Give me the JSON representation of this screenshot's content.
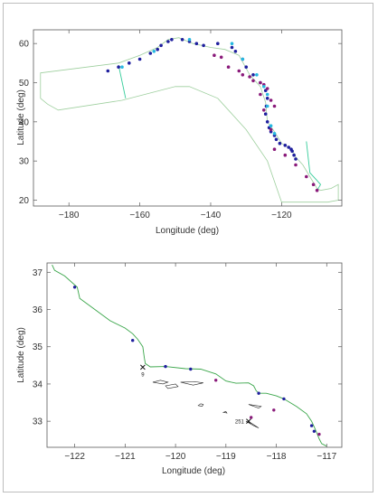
{
  "colors": {
    "frame": "#5a5a5a",
    "track_outline": "#9ecf9e",
    "coast": "#3aa64a",
    "segment": "#33cc99",
    "island": "#222222",
    "dark": "#1f1f9e",
    "purple": "#8a1a7a",
    "cyan": "#27b8e0"
  },
  "chart_data": [
    {
      "type": "scatter",
      "xlabel": "Longitude (deg)",
      "ylabel": "Latitude (deg)",
      "xlim": [
        -190,
        -103
      ],
      "ylim": [
        18.5,
        63.5
      ],
      "xticks": [
        -180,
        -160,
        -140,
        -120
      ],
      "yticks": [
        20,
        30,
        40,
        50,
        60
      ],
      "xtick_labels": [
        "−180",
        "−160",
        "−140",
        "−120"
      ],
      "ytick_labels": [
        "20",
        "30",
        "40",
        "50",
        "60"
      ],
      "boundary": [
        [
          -188,
          52.5
        ],
        [
          -166,
          55
        ],
        [
          -160,
          57
        ],
        [
          -155,
          59
        ],
        [
          -152,
          61
        ],
        [
          -149,
          61.5
        ],
        [
          -145,
          60
        ],
        [
          -140,
          59
        ],
        [
          -136,
          58.5
        ],
        [
          -132,
          57
        ],
        [
          -129,
          52
        ],
        [
          -126,
          49
        ],
        [
          -124.5,
          45
        ],
        [
          -124,
          40
        ],
        [
          -122,
          37.5
        ],
        [
          -120,
          34.5
        ],
        [
          -117,
          33
        ],
        [
          -116,
          31
        ],
        [
          -114,
          29
        ],
        [
          -112,
          26
        ],
        [
          -110,
          23
        ],
        [
          -109,
          22.5
        ],
        [
          -106,
          23
        ],
        [
          -104,
          24
        ],
        [
          -104,
          20
        ],
        [
          -107,
          19.5
        ],
        [
          -110,
          19.5
        ],
        [
          -120,
          19.5
        ],
        [
          -124,
          30
        ],
        [
          -130,
          38
        ],
        [
          -138,
          46
        ],
        [
          -146,
          49
        ],
        [
          -150,
          49
        ],
        [
          -165,
          45.5
        ],
        [
          -183,
          43
        ],
        [
          -186,
          44.5
        ],
        [
          -188,
          46
        ],
        [
          -188,
          52.5
        ]
      ],
      "segments": [
        [
          [
            -166,
            54.5
          ],
          [
            -164,
            46
          ]
        ],
        [
          [
            -113,
            35
          ],
          [
            -112,
            27
          ],
          [
            -110,
            25
          ],
          [
            -109,
            24
          ],
          [
            -110,
            22.5
          ]
        ]
      ],
      "series": [
        {
          "color": "dark",
          "points": [
            [
              -169,
              53
            ],
            [
              -166,
              54
            ],
            [
              -163,
              55
            ],
            [
              -160,
              56
            ],
            [
              -157,
              57.5
            ],
            [
              -155,
              58.5
            ],
            [
              -154,
              59.5
            ],
            [
              -152,
              60.5
            ],
            [
              -151,
              61
            ],
            [
              -148,
              61
            ],
            [
              -146,
              60.5
            ],
            [
              -144,
              60
            ],
            [
              -142,
              59.5
            ],
            [
              -138,
              60
            ],
            [
              -134,
              59
            ],
            [
              -133,
              58
            ],
            [
              -131,
              56
            ],
            [
              -130,
              54
            ],
            [
              -128,
              52
            ],
            [
              -126,
              50
            ],
            [
              -124.5,
              48
            ],
            [
              -124,
              46
            ],
            [
              -124.3,
              44
            ],
            [
              -124.5,
              42
            ],
            [
              -124,
              40
            ],
            [
              -123.5,
              38.5
            ],
            [
              -123,
              37.5
            ],
            [
              -122,
              36.5
            ],
            [
              -121.5,
              35.5
            ],
            [
              -120.5,
              34.5
            ],
            [
              -119,
              34
            ],
            [
              -118,
              33.5
            ],
            [
              -117.3,
              33
            ],
            [
              -117,
              32.5
            ],
            [
              -116.5,
              31.5
            ],
            [
              -116,
              30.5
            ]
          ]
        },
        {
          "color": "purple",
          "points": [
            [
              -139,
              57
            ],
            [
              -137,
              56.5
            ],
            [
              -135,
              54
            ],
            [
              -132,
              53
            ],
            [
              -131,
              52
            ],
            [
              -129,
              51.5
            ],
            [
              -128,
              50.5
            ],
            [
              -126,
              50
            ],
            [
              -125,
              49.5
            ],
            [
              -124,
              48.5
            ],
            [
              -126,
              47
            ],
            [
              -123,
              45.5
            ],
            [
              -122,
              44
            ],
            [
              -125,
              43
            ],
            [
              -123,
              38
            ],
            [
              -122,
              33
            ],
            [
              -119,
              31.5
            ],
            [
              -116,
              29
            ],
            [
              -113,
              26
            ],
            [
              -111,
              24
            ],
            [
              -110,
              22.5
            ]
          ]
        },
        {
          "color": "cyan",
          "points": [
            [
              -165,
              54
            ],
            [
              -156,
              58
            ],
            [
              -146,
              61
            ],
            [
              -134,
              60
            ],
            [
              -131,
              56
            ],
            [
              -127,
              52
            ],
            [
              -125,
              49
            ],
            [
              -124,
              47
            ],
            [
              -124,
              44
            ],
            [
              -123,
              39
            ],
            [
              -122,
              37
            ]
          ]
        }
      ]
    },
    {
      "type": "scatter",
      "xlabel": "Longitude (deg)",
      "ylabel": "Latitude (deg)",
      "xlim": [
        -122.55,
        -116.7
      ],
      "ylim": [
        32.3,
        37.25
      ],
      "xticks": [
        -122,
        -121,
        -120,
        -119,
        -118,
        -117
      ],
      "yticks": [
        33,
        34,
        35,
        36,
        37
      ],
      "xtick_labels": [
        "−122",
        "−121",
        "−120",
        "−119",
        "−118",
        "−117"
      ],
      "ytick_labels": [
        "33",
        "34",
        "35",
        "36",
        "37"
      ],
      "coastline": [
        [
          -122.45,
          37.2
        ],
        [
          -122.4,
          37.05
        ],
        [
          -122.2,
          36.9
        ],
        [
          -121.95,
          36.6
        ],
        [
          -121.9,
          36.3
        ],
        [
          -121.6,
          36.0
        ],
        [
          -121.3,
          35.7
        ],
        [
          -121.0,
          35.5
        ],
        [
          -120.85,
          35.35
        ],
        [
          -120.75,
          35.2
        ],
        [
          -120.65,
          35.0
        ],
        [
          -120.62,
          34.7
        ],
        [
          -120.6,
          34.55
        ],
        [
          -120.5,
          34.46
        ],
        [
          -120.2,
          34.47
        ],
        [
          -119.8,
          34.41
        ],
        [
          -119.5,
          34.4
        ],
        [
          -119.2,
          34.27
        ],
        [
          -119.0,
          34.08
        ],
        [
          -118.8,
          34.02
        ],
        [
          -118.55,
          34.03
        ],
        [
          -118.45,
          33.95
        ],
        [
          -118.4,
          33.82
        ],
        [
          -118.35,
          33.75
        ],
        [
          -118.2,
          33.75
        ],
        [
          -118.0,
          33.68
        ],
        [
          -117.85,
          33.6
        ],
        [
          -117.6,
          33.4
        ],
        [
          -117.4,
          33.2
        ],
        [
          -117.3,
          33.0
        ],
        [
          -117.25,
          32.85
        ],
        [
          -117.2,
          32.7
        ],
        [
          -117.15,
          32.53
        ],
        [
          -117.1,
          32.4
        ],
        [
          -117.0,
          32.33
        ]
      ],
      "islands": [
        [
          [
            -120.45,
            34.05
          ],
          [
            -120.3,
            34.1
          ],
          [
            -120.15,
            34.05
          ],
          [
            -120.25,
            34.0
          ],
          [
            -120.45,
            34.05
          ]
        ],
        [
          [
            -120.2,
            33.95
          ],
          [
            -120.0,
            34.0
          ],
          [
            -119.95,
            33.93
          ],
          [
            -120.15,
            33.88
          ],
          [
            -120.2,
            33.95
          ]
        ],
        [
          [
            -119.9,
            34.05
          ],
          [
            -119.6,
            34.06
          ],
          [
            -119.45,
            34.03
          ],
          [
            -119.65,
            33.97
          ],
          [
            -119.9,
            34.05
          ]
        ],
        [
          [
            -119.45,
            33.45
          ],
          [
            -119.5,
            33.47
          ],
          [
            -119.55,
            33.42
          ],
          [
            -119.47,
            33.4
          ],
          [
            -119.45,
            33.45
          ]
        ],
        [
          [
            -118.55,
            33.45
          ],
          [
            -118.3,
            33.4
          ],
          [
            -118.35,
            33.35
          ],
          [
            -118.55,
            33.45
          ]
        ],
        [
          [
            -119.05,
            33.24
          ],
          [
            -119.0,
            33.26
          ],
          [
            -118.98,
            33.22
          ],
          [
            -119.05,
            33.24
          ]
        ],
        [
          [
            -118.6,
            33.0
          ],
          [
            -118.45,
            32.88
          ],
          [
            -118.35,
            32.82
          ],
          [
            -118.5,
            32.95
          ],
          [
            -118.6,
            33.0
          ]
        ]
      ],
      "series": [
        {
          "color": "dark",
          "points": [
            [
              -122.0,
              36.6
            ],
            [
              -120.85,
              35.17
            ],
            [
              -120.2,
              34.47
            ],
            [
              -119.7,
              34.4
            ],
            [
              -118.35,
              33.75
            ],
            [
              -117.85,
              33.6
            ],
            [
              -117.3,
              32.88
            ],
            [
              -117.25,
              32.73
            ]
          ]
        },
        {
          "color": "purple",
          "points": [
            [
              -119.2,
              34.1
            ],
            [
              -118.05,
              33.3
            ],
            [
              -118.5,
              33.1
            ],
            [
              -117.15,
              32.65
            ]
          ]
        }
      ],
      "markers": [
        {
          "x": -120.65,
          "y": 34.45,
          "label": "9"
        },
        {
          "x": -118.55,
          "y": 33.0,
          "label": "251"
        }
      ]
    }
  ]
}
